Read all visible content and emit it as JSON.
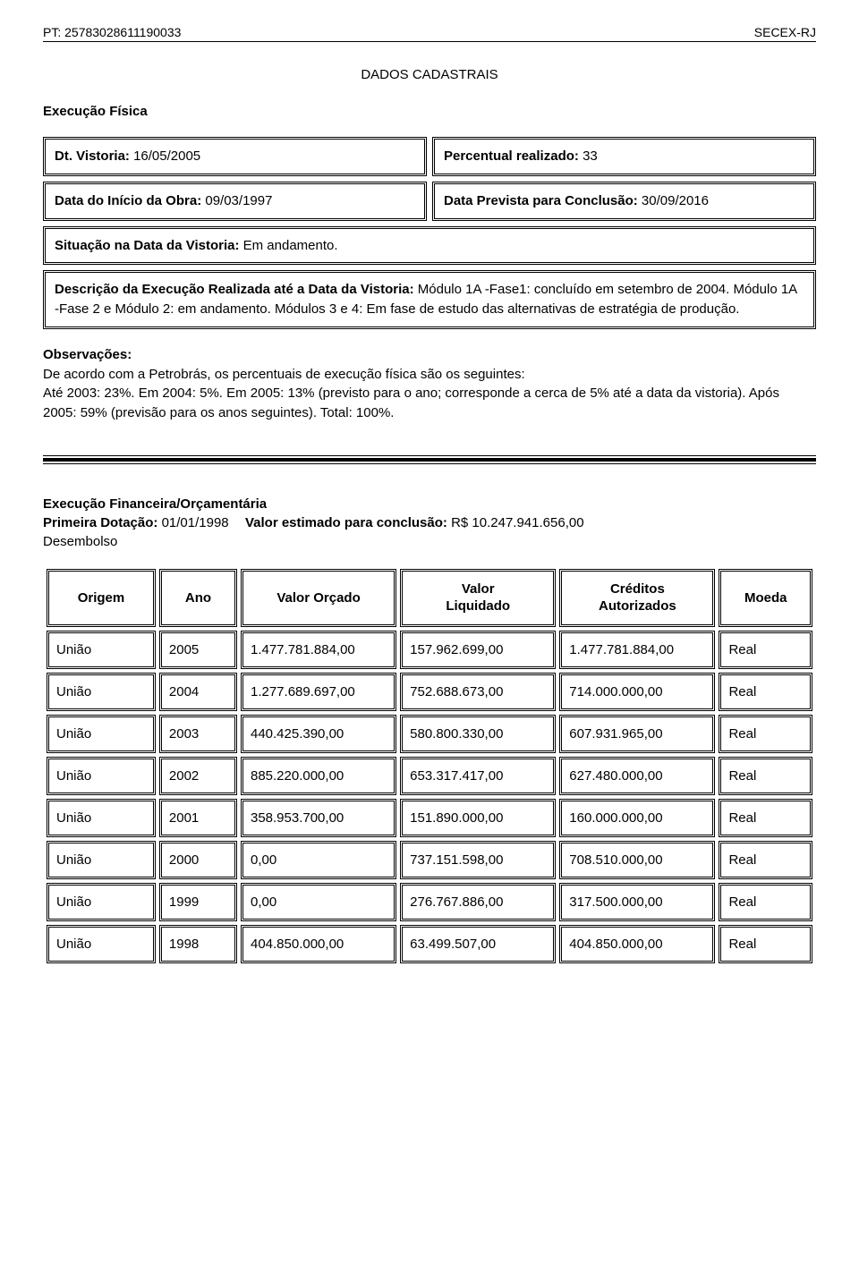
{
  "header": {
    "left": "PT: 25783028611190033",
    "right": "SECEX-RJ"
  },
  "main_title": "DADOS CADASTRAIS",
  "exec_fisica_title": "Execução Física",
  "vistoria": {
    "dt_label": "Dt. Vistoria:",
    "dt_value": "16/05/2005",
    "perc_label": "Percentual realizado:",
    "perc_value": "33",
    "inicio_label": "Data do Início da Obra:",
    "inicio_value": "09/03/1997",
    "conclusao_label": "Data Prevista para Conclusão:",
    "conclusao_value": "30/09/2016",
    "situacao_label": "Situação na Data da Vistoria:",
    "situacao_value": "Em andamento.",
    "descricao_label": "Descrição da Execução Realizada até a Data da Vistoria:",
    "descricao_value": "Módulo 1A -Fase1: concluído em setembro de 2004. Módulo 1A -Fase 2 e Módulo 2: em andamento. Módulos 3 e 4: Em fase de estudo das alternativas de estratégia de produção."
  },
  "observacoes": {
    "title": "Observações:",
    "body": "De acordo com a Petrobrás, os percentuais de execução física são os seguintes:\nAté 2003: 23%. Em 2004: 5%. Em 2005: 13% (previsto para o ano; corresponde a cerca de 5% até a data da vistoria). Após 2005: 59% (previsão para os anos seguintes). Total:  100%."
  },
  "financeira": {
    "title": "Execução Financeira/Orçamentária",
    "dotacao_label": "Primeira Dotação:",
    "dotacao_value": "01/01/1998",
    "valor_est_label": "Valor estimado para conclusão:",
    "valor_est_value": "R$ 10.247.941.656,00",
    "desembolso_label": "Desembolso",
    "columns": {
      "origem": "Origem",
      "ano": "Ano",
      "orcado": "Valor Orçado",
      "liquidado": "Valor\nLiquidado",
      "creditos": "Créditos\nAutorizados",
      "moeda": "Moeda"
    },
    "rows": [
      {
        "origem": "União",
        "ano": "2005",
        "orcado": "1.477.781.884,00",
        "liquidado": "157.962.699,00",
        "creditos": "1.477.781.884,00",
        "moeda": "Real"
      },
      {
        "origem": "União",
        "ano": "2004",
        "orcado": "1.277.689.697,00",
        "liquidado": "752.688.673,00",
        "creditos": "714.000.000,00",
        "moeda": "Real"
      },
      {
        "origem": "União",
        "ano": "2003",
        "orcado": "440.425.390,00",
        "liquidado": "580.800.330,00",
        "creditos": "607.931.965,00",
        "moeda": "Real"
      },
      {
        "origem": "União",
        "ano": "2002",
        "orcado": "885.220.000,00",
        "liquidado": "653.317.417,00",
        "creditos": "627.480.000,00",
        "moeda": "Real"
      },
      {
        "origem": "União",
        "ano": "2001",
        "orcado": "358.953.700,00",
        "liquidado": "151.890.000,00",
        "creditos": "160.000.000,00",
        "moeda": "Real"
      },
      {
        "origem": "União",
        "ano": "2000",
        "orcado": "0,00",
        "liquidado": "737.151.598,00",
        "creditos": "708.510.000,00",
        "moeda": "Real"
      },
      {
        "origem": "União",
        "ano": "1999",
        "orcado": "0,00",
        "liquidado": "276.767.886,00",
        "creditos": "317.500.000,00",
        "moeda": "Real"
      },
      {
        "origem": "União",
        "ano": "1998",
        "orcado": "404.850.000,00",
        "liquidado": "63.499.507,00",
        "creditos": "404.850.000,00",
        "moeda": "Real"
      }
    ]
  }
}
